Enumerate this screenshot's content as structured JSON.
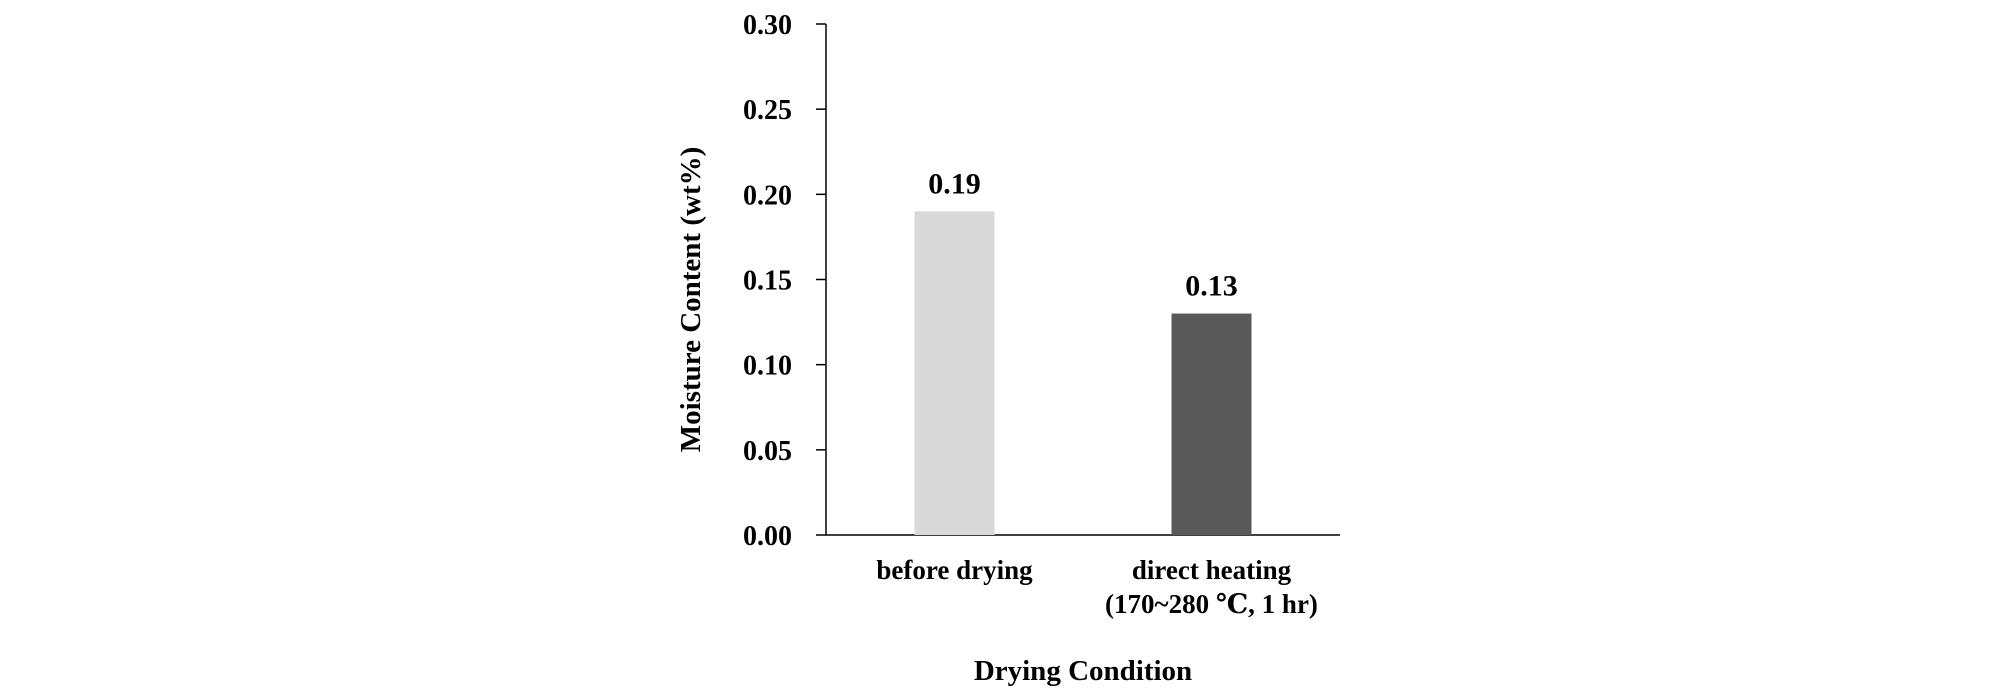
{
  "chart_data": {
    "type": "bar",
    "title": "",
    "xlabel": "Drying Condition",
    "ylabel": "Moisture Content (wt%)",
    "ylim": [
      0,
      0.3
    ],
    "yticks": [
      "0.00",
      "0.05",
      "0.10",
      "0.15",
      "0.20",
      "0.25",
      "0.30"
    ],
    "categories": [
      {
        "lines": [
          "before drying"
        ]
      },
      {
        "lines": [
          "direct heating",
          "(170~280 ℃, 1 hr)"
        ]
      }
    ],
    "values": [
      0.19,
      0.13
    ],
    "value_labels": [
      "0.19",
      "0.13"
    ],
    "colors": [
      "#d9d9d9",
      "#595959"
    ],
    "grid": false,
    "legend": "none"
  }
}
